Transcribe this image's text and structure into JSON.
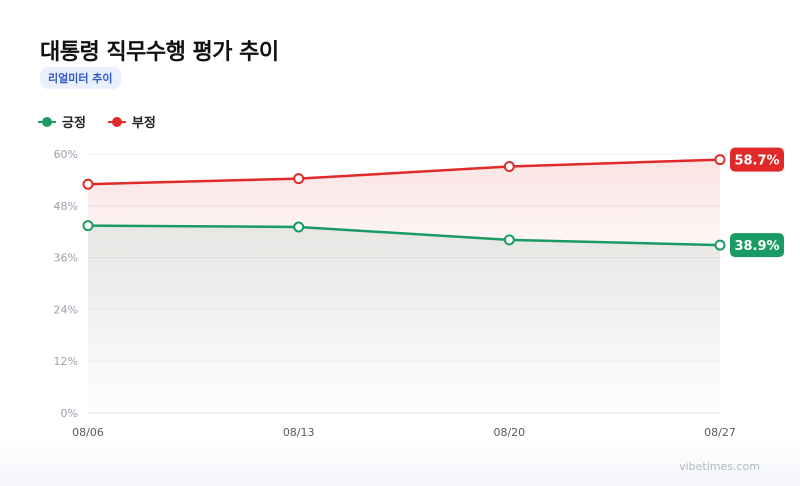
{
  "header": {
    "title": "대통령 직무수행 평가 추이",
    "badge": "리얼미터 추이"
  },
  "watermark": "vibetimes.com",
  "colors": {
    "positive": "#1a9b63",
    "negative": "#e02a2a",
    "badge_bg": "#e9effc",
    "badge_text": "#2e59c6"
  },
  "chart_data": {
    "type": "line",
    "categories": [
      "08/06",
      "08/13",
      "08/20",
      "08/27"
    ],
    "series": [
      {
        "name": "긍정",
        "color": "#1a9b63",
        "values": [
          43.4,
          43.1,
          40.1,
          38.9
        ]
      },
      {
        "name": "부정",
        "color": "#e02a2a",
        "values": [
          53.0,
          54.3,
          57.1,
          58.7
        ]
      }
    ],
    "yticks": [
      "0%",
      "12%",
      "24%",
      "36%",
      "48%",
      "60%"
    ],
    "ylim": [
      0,
      60
    ],
    "end_labels": [
      "38.9%",
      "58.7%"
    ],
    "grid": true,
    "legend": "top-left"
  }
}
